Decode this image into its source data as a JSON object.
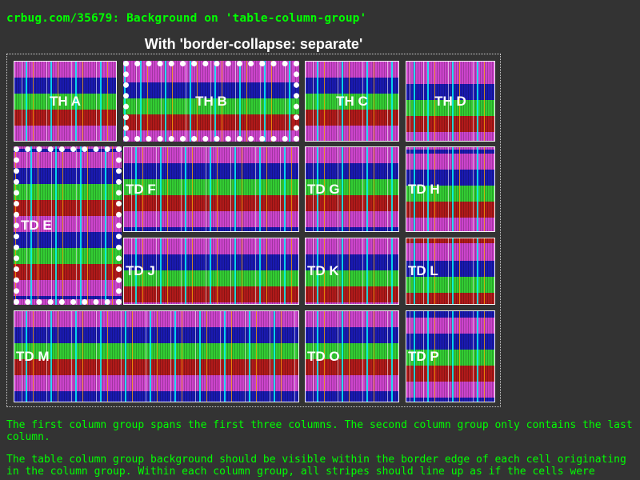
{
  "page": {
    "title": "crbug.com/35679: Background on 'table-column-group'",
    "caption": "With 'border-collapse: separate'"
  },
  "headers": [
    "TH A",
    "TH B",
    "TH C",
    "TH D"
  ],
  "cells": {
    "e": "TD E",
    "f": "TD F",
    "g": "TD G",
    "h": "TD H",
    "j": "TD J",
    "k": "TD K",
    "l": "TD L",
    "m": "TD M",
    "o": "TD O",
    "p": "TD P"
  },
  "paragraphs": [
    "The first column group spans the first three columns. The second column group only contains the last column.",
    "The table column group background should be visible within the border edge of each cell originating in the column group. Within each column group, all stripes should line up as if the cells were"
  ],
  "colors": {
    "background": "#333333",
    "text": "#00ff00",
    "stripes": [
      "#cc44cc",
      "#1a1ab0",
      "#33cc33",
      "#b01a1a"
    ]
  }
}
